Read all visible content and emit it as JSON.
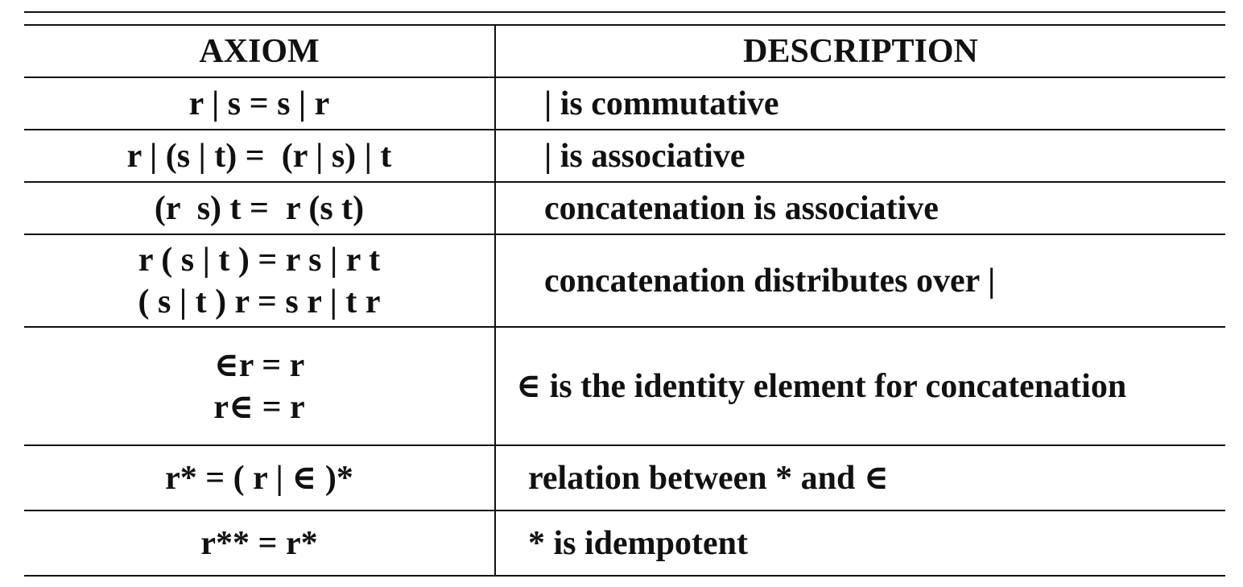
{
  "table": {
    "headers": {
      "axiom": "AXIOM",
      "description": "DESCRIPTION"
    },
    "rows": [
      {
        "axiom": [
          "r | s = s | r"
        ],
        "description": "|  is commutative"
      },
      {
        "axiom": [
          "r | (s | t) =  (r | s) | t"
        ],
        "description": "|  is associative"
      },
      {
        "axiom": [
          "(r  s) t =  r (s t)"
        ],
        "description": "concatenation  is associative"
      },
      {
        "axiom": [
          "r ( s | t ) = r s | r t",
          "( s | t ) r = s r | t r"
        ],
        "description": "concatenation distributes over |"
      },
      {
        "axiom": [
          "∈r = r",
          "r∈ = r"
        ],
        "description": "∈ is the identity element for concatenation"
      },
      {
        "axiom": [
          "r* = ( r | ∈ )*"
        ],
        "description": "relation between * and ∈"
      },
      {
        "axiom": [
          "r** = r*"
        ],
        "description": "*  is idempotent"
      }
    ]
  }
}
